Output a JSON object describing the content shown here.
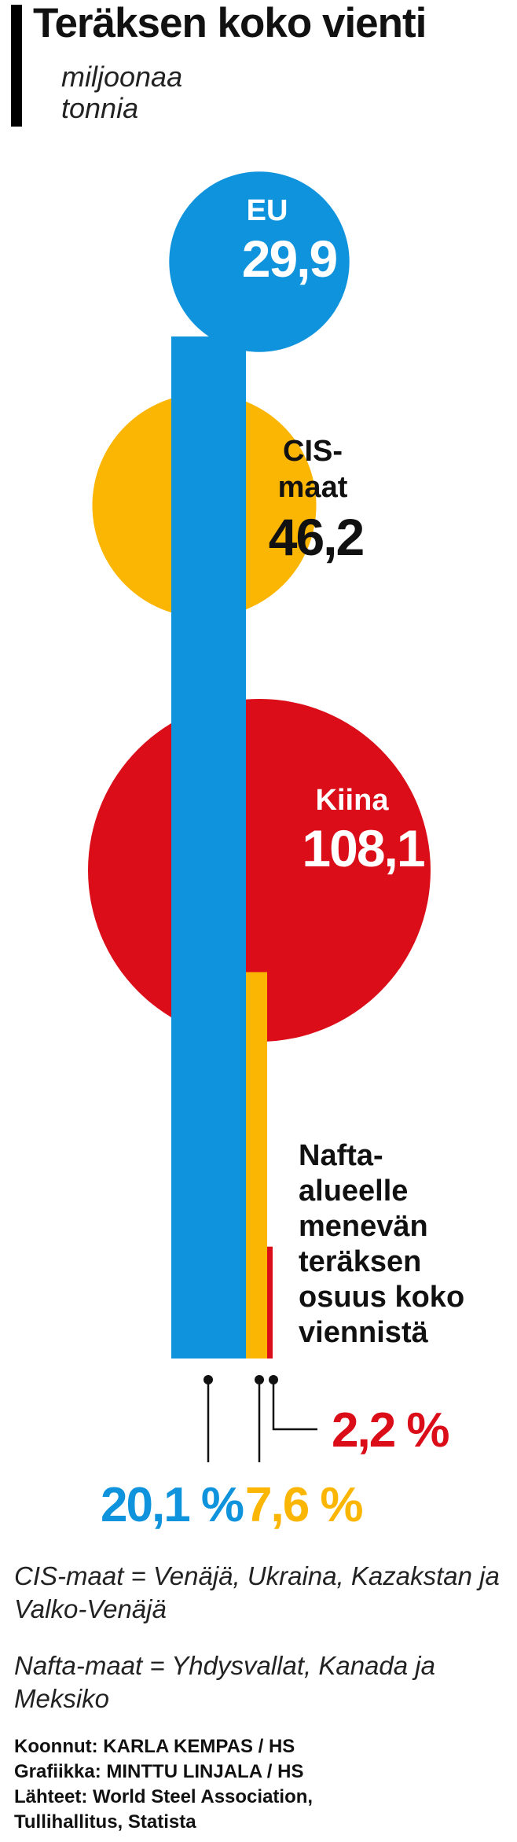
{
  "header": {
    "title": "Teräksen koko vienti",
    "unit": "miljoonaa tonnia"
  },
  "chart_data": {
    "type": "bubble-bar",
    "title": "Teräksen koko vienti",
    "unit": "miljoonaa tonnia",
    "bubbles": [
      {
        "label": "EU",
        "value": 29.9,
        "value_label": "29,9",
        "color": "#0f93dc"
      },
      {
        "label": "CIS-maat",
        "label_lines": [
          "CIS-",
          "maat"
        ],
        "value": 46.2,
        "value_label": "46,2",
        "color": "#fbb604"
      },
      {
        "label": "Kiina",
        "value": 108.1,
        "value_label": "108,1",
        "color": "#da0d18"
      }
    ],
    "nafta_share": {
      "title": "Nafta-alueelle menevän teräksen osuus koko viennistä",
      "title_lines": [
        "Nafta-",
        "alueelle",
        "menevän",
        "teräksen",
        "osuus koko",
        "viennistä"
      ],
      "bars": [
        {
          "label": "EU",
          "value": 20.1,
          "value_label": "20,1 %",
          "color": "#0f93dc"
        },
        {
          "label": "CIS-maat",
          "value": 7.6,
          "value_label": "7,6 %",
          "color": "#fbb604"
        },
        {
          "label": "Kiina",
          "value": 2.2,
          "value_label": "2,2 %",
          "color": "#da0d18"
        }
      ]
    }
  },
  "notes": {
    "cis": "CIS-maat = Venäjä, Ukraina, Kazakstan ja Valko-Venäjä",
    "nafta": "Nafta-maat = Yhdysvallat, Kanada ja Meksiko"
  },
  "credits": {
    "line1": "Koonnut: KARLA KEMPAS / HS",
    "line2": "Grafiikka: MINTTU LINJALA / HS",
    "line3": "Lähteet: World Steel Association,",
    "line4": "Tullihallitus, Statista"
  }
}
